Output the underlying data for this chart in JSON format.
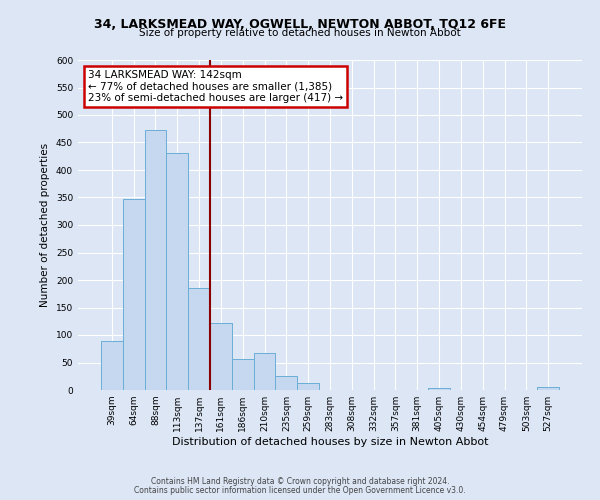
{
  "title": "34, LARKSMEAD WAY, OGWELL, NEWTON ABBOT, TQ12 6FE",
  "subtitle": "Size of property relative to detached houses in Newton Abbot",
  "xlabel": "Distribution of detached houses by size in Newton Abbot",
  "ylabel": "Number of detached properties",
  "bar_labels": [
    "39sqm",
    "64sqm",
    "88sqm",
    "113sqm",
    "137sqm",
    "161sqm",
    "186sqm",
    "210sqm",
    "235sqm",
    "259sqm",
    "283sqm",
    "308sqm",
    "332sqm",
    "357sqm",
    "381sqm",
    "405sqm",
    "430sqm",
    "454sqm",
    "479sqm",
    "503sqm",
    "527sqm"
  ],
  "bar_values": [
    90,
    348,
    472,
    430,
    185,
    122,
    57,
    67,
    25,
    13,
    0,
    0,
    0,
    0,
    0,
    3,
    0,
    0,
    0,
    0,
    5
  ],
  "bar_color": "#c5d8f0",
  "bar_edge_color": "#6aaed6",
  "vline_x": 4.5,
  "vline_color": "#8b0000",
  "annotation_title": "34 LARKSMEAD WAY: 142sqm",
  "annotation_line1": "← 77% of detached houses are smaller (1,385)",
  "annotation_line2": "23% of semi-detached houses are larger (417) →",
  "annotation_box_facecolor": "#ffffff",
  "annotation_box_edgecolor": "#cc0000",
  "ylim_max": 600,
  "ytick_step": 50,
  "footer1": "Contains HM Land Registry data © Crown copyright and database right 2024.",
  "footer2": "Contains public sector information licensed under the Open Government Licence v3.0.",
  "bg_color": "#dce6f5",
  "plot_bg_color": "#dce6f5",
  "grid_color": "#ffffff",
  "title_fontsize": 9,
  "subtitle_fontsize": 7.5,
  "ylabel_fontsize": 7.5,
  "xlabel_fontsize": 8,
  "tick_label_fontsize": 6.5,
  "footer_fontsize": 5.5,
  "annot_fontsize": 7.5
}
